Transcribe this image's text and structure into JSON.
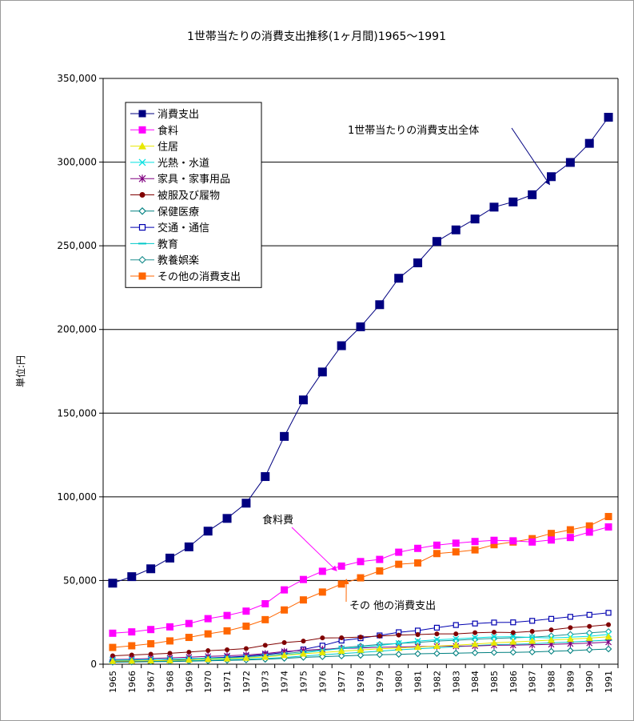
{
  "chart_data": {
    "type": "line",
    "title": "1世帯当たりの消費支出推移(1ヶ月間)1965～1991",
    "ylabel": "単位:円",
    "xlabel": "",
    "ylim": [
      0,
      350000
    ],
    "yticks": [
      0,
      50000,
      100000,
      150000,
      200000,
      250000,
      300000,
      350000
    ],
    "ytick_labels": [
      "0",
      "50,000",
      "100,000",
      "150,000",
      "200,000",
      "250,000",
      "300,000",
      "350,000"
    ],
    "grid": true,
    "legend_position": "top-left",
    "categories": [
      "1965",
      "1966",
      "1967",
      "1968",
      "1969",
      "1970",
      "1971",
      "1972",
      "1973",
      "1974",
      "1975",
      "1976",
      "1977",
      "1978",
      "1979",
      "1980",
      "1981",
      "1982",
      "1983",
      "1984",
      "1985",
      "1986",
      "1987",
      "1988",
      "1989",
      "1990",
      "1991"
    ],
    "series": [
      {
        "name": "消費支出",
        "color": "#000080",
        "marker": "square-filled",
        "values": [
          48400,
          52300,
          57000,
          63400,
          70100,
          79500,
          87100,
          96200,
          112100,
          136100,
          157900,
          174600,
          190300,
          201600,
          214800,
          230600,
          239800,
          252600,
          259500,
          266000,
          273100,
          276200,
          280500,
          291300,
          299800,
          311200,
          326800
        ]
      },
      {
        "name": "食料",
        "color": "#ff00ff",
        "marker": "square-filled",
        "values": [
          18500,
          19300,
          20700,
          22300,
          24300,
          27200,
          29100,
          31700,
          36100,
          44400,
          50600,
          55500,
          58600,
          61300,
          62600,
          66900,
          69200,
          71100,
          72300,
          73300,
          74000,
          73700,
          73000,
          74200,
          75700,
          78900,
          82000
        ]
      },
      {
        "name": "住居",
        "color": "#e8e800",
        "marker": "triangle",
        "values": [
          1800,
          1900,
          2100,
          2300,
          2600,
          3000,
          3300,
          3700,
          4300,
          5300,
          6200,
          7000,
          7800,
          8500,
          9200,
          9600,
          10200,
          10800,
          11400,
          12000,
          12800,
          13300,
          13800,
          14400,
          15000,
          15600,
          16400
        ]
      },
      {
        "name": "光熱・水道",
        "color": "#00e0e0",
        "marker": "x",
        "values": [
          2500,
          2600,
          2800,
          3000,
          3200,
          3500,
          3700,
          3900,
          4500,
          5500,
          6700,
          8200,
          9300,
          10200,
          11200,
          12500,
          13800,
          14600,
          15100,
          15800,
          16300,
          16400,
          16000,
          15700,
          16100,
          16700,
          17800
        ]
      },
      {
        "name": "家具・家事用品",
        "color": "#800080",
        "marker": "star",
        "values": [
          2800,
          3000,
          3400,
          3800,
          4200,
          4700,
          5000,
          5500,
          6300,
          7600,
          8300,
          8900,
          9300,
          9700,
          10100,
          10300,
          10500,
          10700,
          10800,
          10900,
          11300,
          11400,
          11600,
          11800,
          12200,
          12600,
          13200
        ]
      },
      {
        "name": "被服及び履物",
        "color": "#800000",
        "marker": "circle-filled",
        "values": [
          5000,
          5500,
          6000,
          6500,
          7200,
          8100,
          8600,
          9300,
          11300,
          12900,
          13800,
          15700,
          15800,
          16200,
          16800,
          17400,
          17700,
          18100,
          18100,
          18800,
          19100,
          18900,
          19600,
          20500,
          21800,
          22600,
          23600
        ]
      },
      {
        "name": "保健医療",
        "color": "#008080",
        "marker": "diamond-open",
        "values": [
          1200,
          1300,
          1500,
          1600,
          1800,
          2000,
          2300,
          2500,
          2900,
          3500,
          4100,
          4500,
          4900,
          5300,
          5700,
          5900,
          6200,
          6400,
          6600,
          6800,
          7000,
          7100,
          7300,
          7700,
          8100,
          8600,
          9100
        ]
      },
      {
        "name": "交通・通信",
        "color": "#0000b0",
        "marker": "square-open",
        "values": [
          1500,
          1700,
          2000,
          2400,
          2900,
          3600,
          4100,
          4800,
          5800,
          7000,
          8800,
          11100,
          14100,
          15500,
          17200,
          19100,
          20100,
          21800,
          23400,
          24300,
          24900,
          25000,
          25900,
          27100,
          28300,
          29500,
          30700
        ]
      },
      {
        "name": "教育",
        "color": "#00c8c8",
        "marker": "dash",
        "values": [
          1400,
          1500,
          1700,
          1900,
          2100,
          2400,
          2700,
          3000,
          3400,
          4000,
          4900,
          5600,
          6300,
          7000,
          7800,
          8600,
          9200,
          9800,
          10400,
          11100,
          11700,
          11900,
          12200,
          12800,
          13200,
          13800,
          14400
        ]
      },
      {
        "name": "教養娯楽",
        "color": "#209090",
        "marker": "diamond-open",
        "values": [
          2200,
          2400,
          2700,
          3000,
          3300,
          3800,
          4100,
          4500,
          5200,
          6200,
          7500,
          8600,
          9800,
          10800,
          11800,
          12400,
          13000,
          13800,
          14300,
          14900,
          15400,
          15800,
          16100,
          16900,
          17800,
          18700,
          19500
        ]
      },
      {
        "name": "その他の消費支出",
        "color": "#ff6600",
        "marker": "square-filled",
        "values": [
          10000,
          11000,
          12200,
          13900,
          16000,
          18100,
          19900,
          22700,
          26600,
          32400,
          38400,
          43100,
          47900,
          51600,
          55700,
          59700,
          60500,
          66100,
          67100,
          68300,
          71400,
          73000,
          75000,
          78100,
          80300,
          82600,
          88200
        ]
      }
    ],
    "annotations": [
      {
        "text": "1世帯当たりの消費支出全体",
        "series": "消費支出",
        "target_year": "1988"
      },
      {
        "text": "食料費",
        "series": "食料",
        "target_year": "1977"
      },
      {
        "text": "その 他の消費支出",
        "series": "その他の消費支出",
        "target_year": "1977"
      }
    ]
  }
}
